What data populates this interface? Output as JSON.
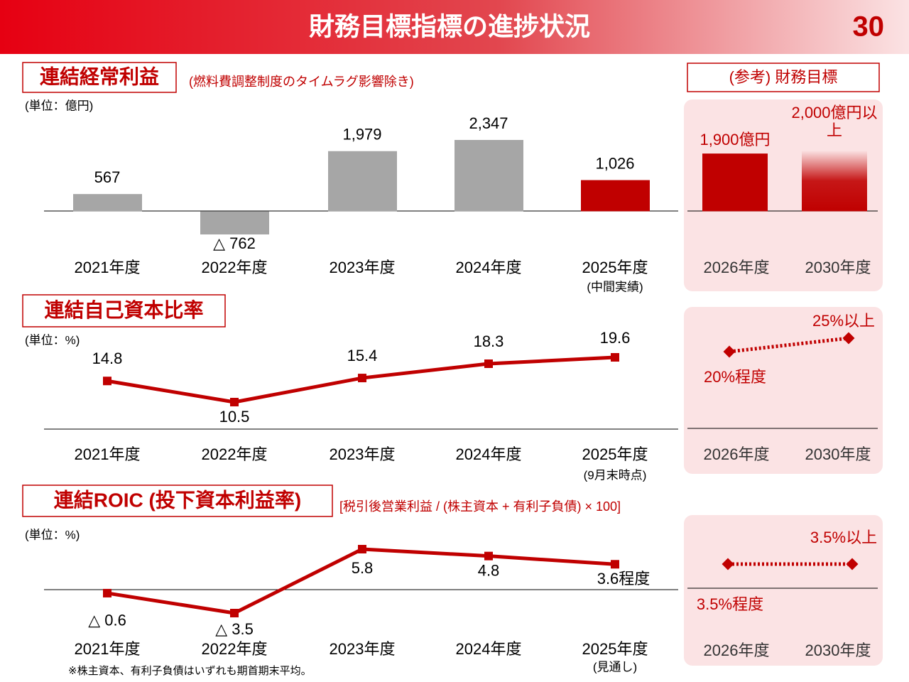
{
  "header": {
    "title": "財務目標指標の進捗状況",
    "page": "30",
    "reference_title": "(参考) 財務目標"
  },
  "footnote": "※株主資本、有利子負債はいずれも期首期末平均。",
  "chart_data": [
    {
      "type": "bar",
      "title": "連結経常利益",
      "subtitle": "(燃料費調整制度のタイムラグ影響除き)",
      "unit": "(単位：億円)",
      "categories": [
        "2021年度",
        "2022年度",
        "2023年度",
        "2024年度",
        "2025年度"
      ],
      "category_notes": [
        null,
        null,
        null,
        null,
        "(中間実績)"
      ],
      "values": [
        567,
        -762,
        1979,
        2347,
        1026
      ],
      "value_labels": [
        "567",
        "△ 762",
        "1,979",
        "2,347",
        "1,026"
      ],
      "colors": [
        "#a6a6a6",
        "#a6a6a6",
        "#a6a6a6",
        "#a6a6a6",
        "#c00000"
      ],
      "targets": {
        "categories": [
          "2026年度",
          "2030年度"
        ],
        "values": [
          1900,
          2000
        ],
        "value_labels": [
          "1,900億円",
          "2,000億円以上"
        ],
        "color": "#c00000",
        "styles": [
          "solid",
          "fade"
        ]
      }
    },
    {
      "type": "line",
      "title": "連結自己資本比率",
      "unit": "(単位：%)",
      "categories": [
        "2021年度",
        "2022年度",
        "2023年度",
        "2024年度",
        "2025年度"
      ],
      "category_notes": [
        null,
        null,
        null,
        null,
        "(9月末時点)"
      ],
      "values": [
        14.8,
        10.5,
        15.4,
        18.3,
        19.6
      ],
      "value_labels": [
        "14.8",
        "10.5",
        "15.4",
        "18.3",
        "19.6"
      ],
      "color": "#c00000",
      "targets": {
        "categories": [
          "2026年度",
          "2030年度"
        ],
        "values": [
          20,
          25
        ],
        "value_labels": [
          "20%程度",
          "25%以上"
        ],
        "color": "#c00000"
      }
    },
    {
      "type": "line",
      "title": "連結ROIC (投下資本利益率)",
      "subtitle": "[税引後営業利益 / (株主資本 + 有利子負債) × 100]",
      "unit": "(単位：%)",
      "categories": [
        "2021年度",
        "2022年度",
        "2023年度",
        "2024年度",
        "2025年度"
      ],
      "category_notes": [
        null,
        null,
        null,
        null,
        "(見通し)"
      ],
      "values": [
        -0.6,
        -3.5,
        5.8,
        4.8,
        3.6
      ],
      "value_labels": [
        "△ 0.6",
        "△ 3.5",
        "5.8",
        "4.8",
        "3.6程度"
      ],
      "color": "#c00000",
      "targets": {
        "categories": [
          "2026年度",
          "2030年度"
        ],
        "values": [
          3.5,
          3.5
        ],
        "value_labels": [
          "3.5%程度",
          "3.5%以上"
        ],
        "color": "#c00000"
      }
    }
  ]
}
